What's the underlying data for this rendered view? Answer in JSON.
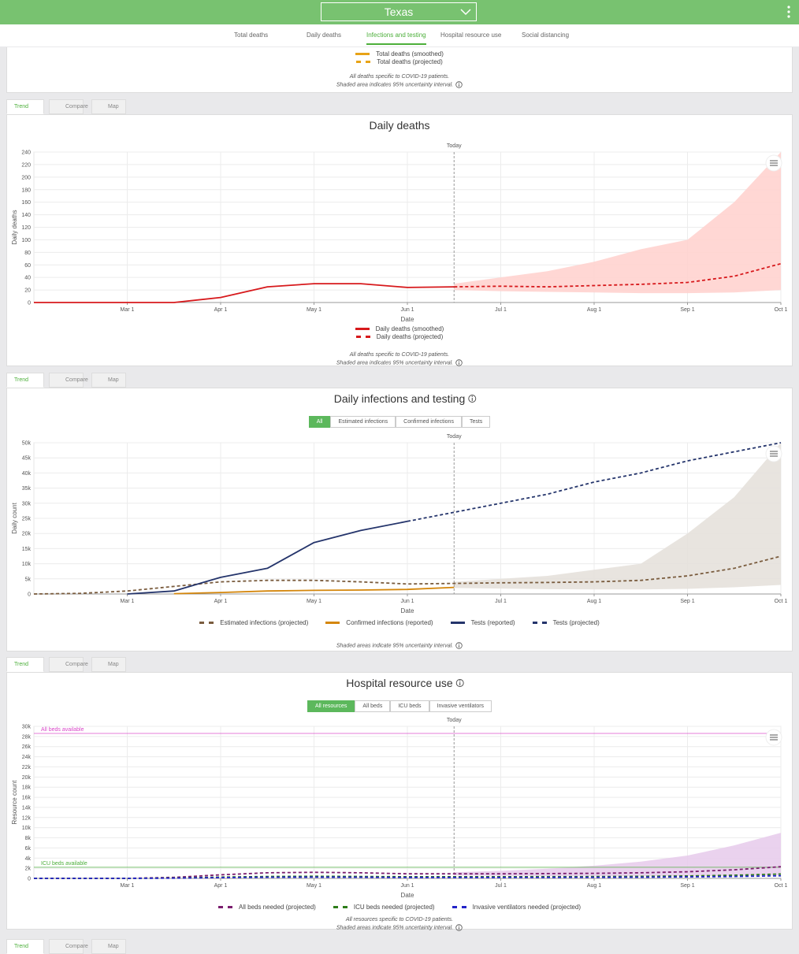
{
  "header": {
    "location": "Texas"
  },
  "nav": {
    "items": [
      "Total deaths",
      "Daily deaths",
      "Infections and testing",
      "Hospital resource use",
      "Social distancing"
    ],
    "active": 2
  },
  "top_card": {
    "legend": [
      {
        "name": "Total deaths (smoothed)",
        "color": "#e8a317",
        "dashed": false
      },
      {
        "name": "Total deaths (projected)",
        "color": "#e8a317",
        "dashed": true
      }
    ],
    "notes": [
      "All deaths specific to COVID-19 patients.",
      "Shaded area indicates 95% uncertainty interval."
    ]
  },
  "tabs": {
    "items": [
      "Trend",
      "Compare",
      "Map"
    ],
    "active": 0
  },
  "chart_data": [
    {
      "type": "line",
      "title": "Daily deaths",
      "title_info": false,
      "xlabel": "Date",
      "ylabel": "Daily deaths",
      "x": [
        "Feb 1",
        "Feb 15",
        "Mar 1",
        "Mar 15",
        "Apr 1",
        "Apr 15",
        "May 1",
        "May 15",
        "Jun 1",
        "Jun 15",
        "Jul 1",
        "Jul 15",
        "Aug 1",
        "Aug 15",
        "Sep 1",
        "Sep 15",
        "Oct 1"
      ],
      "xticks": [
        "Mar 1",
        "Apr 1",
        "May 1",
        "Jun 1",
        "Jul 1",
        "Aug 1",
        "Sep 1",
        "Oct 1"
      ],
      "ylim": [
        0,
        240
      ],
      "yticks": [
        0,
        20,
        40,
        60,
        80,
        100,
        120,
        140,
        160,
        180,
        200,
        220,
        240
      ],
      "grid": true,
      "today": {
        "label": "Today",
        "x": "Jun 15"
      },
      "series": [
        {
          "name": "Daily deaths (smoothed)",
          "color": "#d7191c",
          "dashed": false,
          "values": [
            0,
            0,
            0,
            0,
            8,
            25,
            30,
            30,
            24,
            25,
            null,
            null,
            null,
            null,
            null,
            null,
            null
          ]
        },
        {
          "name": "Daily deaths (projected)",
          "color": "#d7191c",
          "dashed": true,
          "band_color": "#ffd3cf",
          "values": [
            null,
            null,
            null,
            null,
            null,
            null,
            null,
            null,
            null,
            25,
            26,
            25,
            27,
            29,
            32,
            42,
            62
          ],
          "lower": [
            null,
            null,
            null,
            null,
            null,
            null,
            null,
            null,
            null,
            20,
            18,
            17,
            16,
            15,
            15,
            16,
            20
          ],
          "upper": [
            null,
            null,
            null,
            null,
            null,
            null,
            null,
            null,
            null,
            30,
            40,
            50,
            65,
            85,
            100,
            160,
            240
          ]
        }
      ],
      "notes": [
        "All deaths specific to COVID-19 patients.",
        "Shaded area indicates 95% uncertainty interval."
      ]
    },
    {
      "type": "line",
      "title": "Daily infections and testing",
      "title_info": true,
      "xlabel": "Date",
      "ylabel": "Daily count",
      "filters": {
        "items": [
          "All",
          "Estimated infections",
          "Confirmed infections",
          "Tests"
        ],
        "active": 0
      },
      "x": [
        "Feb 1",
        "Feb 15",
        "Mar 1",
        "Mar 15",
        "Apr 1",
        "Apr 15",
        "May 1",
        "May 15",
        "Jun 1",
        "Jun 15",
        "Jul 1",
        "Jul 15",
        "Aug 1",
        "Aug 15",
        "Sep 1",
        "Sep 15",
        "Oct 1"
      ],
      "xticks": [
        "Mar 1",
        "Apr 1",
        "May 1",
        "Jun 1",
        "Jul 1",
        "Aug 1",
        "Sep 1",
        "Oct 1"
      ],
      "ylim": [
        0,
        50000
      ],
      "yticks": [
        0,
        {
          "value": 5000,
          "label": "5k"
        },
        {
          "value": 10000,
          "label": "10k"
        },
        {
          "value": 15000,
          "label": "15k"
        },
        {
          "value": 20000,
          "label": "20k"
        },
        {
          "value": 25000,
          "label": "25k"
        },
        {
          "value": 30000,
          "label": "30k"
        },
        {
          "value": 35000,
          "label": "35k"
        },
        {
          "value": 40000,
          "label": "40k"
        },
        {
          "value": 45000,
          "label": "45k"
        },
        {
          "value": 50000,
          "label": "50k"
        }
      ],
      "grid": true,
      "today": {
        "label": "Today",
        "x": "Jun 15"
      },
      "series": [
        {
          "name": "Estimated infections (projected)",
          "color": "#7a5c3e",
          "dashed": true,
          "band_color": "#e6e1db",
          "values": [
            0,
            200,
            1000,
            2500,
            4000,
            4500,
            4500,
            4000,
            3300,
            3500,
            3700,
            3800,
            4000,
            4500,
            6000,
            8500,
            12500
          ],
          "lower": [
            null,
            null,
            null,
            null,
            null,
            null,
            null,
            null,
            null,
            2000,
            1800,
            1600,
            1500,
            1500,
            1700,
            2200,
            3000
          ],
          "upper": [
            null,
            null,
            null,
            null,
            null,
            null,
            null,
            null,
            null,
            4000,
            5000,
            6000,
            8000,
            10000,
            20000,
            32000,
            50000
          ]
        },
        {
          "name": "Confirmed infections (reported)",
          "color": "#d4860b",
          "dashed": false,
          "values": [
            null,
            null,
            null,
            100,
            500,
            1000,
            1200,
            1300,
            1500,
            2200,
            null,
            null,
            null,
            null,
            null,
            null,
            null
          ]
        },
        {
          "name": "Tests (reported)",
          "color": "#24346b",
          "dashed": false,
          "values": [
            null,
            null,
            0,
            1000,
            5500,
            8500,
            17000,
            21000,
            24000,
            null,
            null,
            null,
            null,
            null,
            null,
            null,
            null
          ]
        },
        {
          "name": "Tests (projected)",
          "color": "#24346b",
          "dashed": true,
          "values": [
            null,
            null,
            null,
            null,
            null,
            null,
            null,
            null,
            24000,
            27000,
            30000,
            33000,
            37000,
            40000,
            44000,
            47000,
            50000
          ]
        }
      ],
      "notes": [
        "Shaded areas indicate 95% uncertainty interval."
      ]
    },
    {
      "type": "line",
      "title": "Hospital resource use",
      "title_info": true,
      "xlabel": "Date",
      "ylabel": "Resource count",
      "filters": {
        "items": [
          "All resources",
          "All beds",
          "ICU beds",
          "Invasive ventilators"
        ],
        "active": 0
      },
      "x": [
        "Feb 1",
        "Feb 15",
        "Mar 1",
        "Mar 15",
        "Apr 1",
        "Apr 15",
        "May 1",
        "May 15",
        "Jun 1",
        "Jun 15",
        "Jul 1",
        "Jul 15",
        "Aug 1",
        "Aug 15",
        "Sep 1",
        "Sep 15",
        "Oct 1"
      ],
      "xticks": [
        "Mar 1",
        "Apr 1",
        "May 1",
        "Jun 1",
        "Jul 1",
        "Aug 1",
        "Sep 1",
        "Oct 1"
      ],
      "ylim": [
        0,
        30000
      ],
      "yticks": [
        0,
        {
          "value": 2000,
          "label": "2k"
        },
        {
          "value": 4000,
          "label": "4k"
        },
        {
          "value": 6000,
          "label": "6k"
        },
        {
          "value": 8000,
          "label": "8k"
        },
        {
          "value": 10000,
          "label": "10k"
        },
        {
          "value": 12000,
          "label": "12k"
        },
        {
          "value": 14000,
          "label": "14k"
        },
        {
          "value": 16000,
          "label": "16k"
        },
        {
          "value": 18000,
          "label": "18k"
        },
        {
          "value": 20000,
          "label": "20k"
        },
        {
          "value": 22000,
          "label": "22k"
        },
        {
          "value": 24000,
          "label": "24k"
        },
        {
          "value": 26000,
          "label": "26k"
        },
        {
          "value": 28000,
          "label": "28k"
        },
        {
          "value": 30000,
          "label": "30k"
        }
      ],
      "grid": true,
      "today": {
        "label": "Today",
        "x": "Jun 15"
      },
      "reference_lines": [
        {
          "label": "All beds available",
          "value": 28600,
          "color": "#d946c9"
        },
        {
          "label": "ICU beds available",
          "value": 2200,
          "color": "#4caf3a"
        }
      ],
      "series": [
        {
          "name": "All beds needed (projected)",
          "color": "#7b1e6e",
          "dashed": true,
          "band_color": "#e8cdec",
          "values": [
            0,
            0,
            0,
            200,
            700,
            1100,
            1200,
            1100,
            900,
            900,
            900,
            950,
            1000,
            1100,
            1300,
            1700,
            2300
          ],
          "lower": [
            null,
            null,
            null,
            null,
            null,
            null,
            null,
            null,
            null,
            600,
            500,
            450,
            400,
            400,
            450,
            500,
            600
          ],
          "upper": [
            null,
            null,
            null,
            null,
            null,
            null,
            null,
            null,
            null,
            1200,
            1500,
            1900,
            2500,
            3300,
            4500,
            6500,
            9000
          ]
        },
        {
          "name": "ICU beds needed (projected)",
          "color": "#2e7d1a",
          "dashed": true,
          "values": [
            0,
            0,
            0,
            70,
            250,
            380,
            420,
            380,
            320,
            320,
            320,
            340,
            360,
            400,
            480,
            620,
            850
          ]
        },
        {
          "name": "Invasive ventilators needed (projected)",
          "color": "#2323c8",
          "dashed": true,
          "values": [
            0,
            0,
            0,
            40,
            150,
            230,
            250,
            230,
            190,
            190,
            190,
            200,
            220,
            240,
            290,
            380,
            520
          ]
        }
      ],
      "notes": [
        "All resources specific to COVID-19 patients.",
        "Shaded areas indicate 95% uncertainty interval."
      ]
    }
  ]
}
